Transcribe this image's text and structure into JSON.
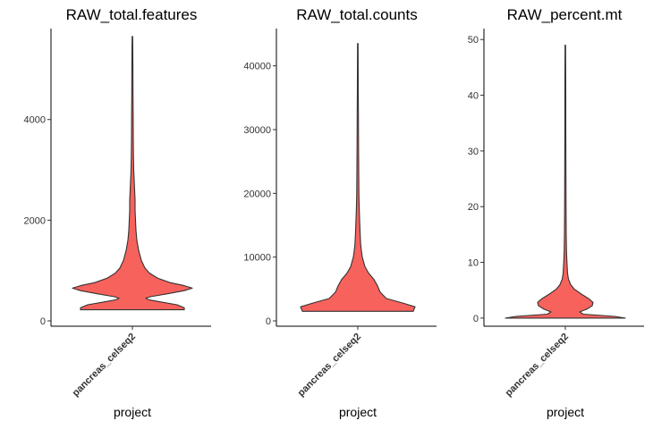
{
  "chart_data": [
    {
      "type": "violin",
      "title": "RAW_total.features",
      "xlabel": "project",
      "ylabel": "",
      "categories": [
        "pancreas_celseq2"
      ],
      "fill_color": "#F8625D",
      "ylim": [
        0,
        5700
      ],
      "yticks": [
        0,
        2000,
        4000
      ],
      "ytick_labels": [
        "0",
        "2000",
        "4000"
      ],
      "density": [
        [
          220,
          58
        ],
        [
          260,
          58
        ],
        [
          320,
          50
        ],
        [
          380,
          30
        ],
        [
          420,
          18
        ],
        [
          450,
          15
        ],
        [
          480,
          20
        ],
        [
          540,
          40
        ],
        [
          600,
          58
        ],
        [
          650,
          67
        ],
        [
          700,
          58
        ],
        [
          760,
          42
        ],
        [
          850,
          28
        ],
        [
          950,
          19
        ],
        [
          1050,
          14
        ],
        [
          1200,
          10
        ],
        [
          1400,
          7
        ],
        [
          1600,
          5
        ],
        [
          1800,
          4
        ],
        [
          2000,
          3.5
        ],
        [
          2200,
          3
        ],
        [
          2400,
          3
        ],
        [
          2600,
          2.5
        ],
        [
          2800,
          2
        ],
        [
          3000,
          1.5
        ],
        [
          3300,
          1.2
        ],
        [
          3600,
          1
        ],
        [
          4000,
          0.9
        ],
        [
          4500,
          0.7
        ],
        [
          5000,
          0.6
        ],
        [
          5500,
          0.4
        ],
        [
          5650,
          0.3
        ]
      ]
    },
    {
      "type": "violin",
      "title": "RAW_total.counts",
      "xlabel": "project",
      "ylabel": "",
      "categories": [
        "pancreas_celseq2"
      ],
      "fill_color": "#F8625D",
      "ylim": [
        0,
        45000
      ],
      "yticks": [
        0,
        10000,
        20000,
        30000,
        40000
      ],
      "ytick_labels": [
        "0",
        "10000",
        "20000",
        "30000",
        "40000"
      ],
      "density": [
        [
          1500,
          62
        ],
        [
          2200,
          64
        ],
        [
          2800,
          50
        ],
        [
          3500,
          32
        ],
        [
          4500,
          25
        ],
        [
          5500,
          22
        ],
        [
          6500,
          18
        ],
        [
          7500,
          12
        ],
        [
          8500,
          8
        ],
        [
          10000,
          5
        ],
        [
          11000,
          4
        ],
        [
          12000,
          3.2
        ],
        [
          14000,
          2.5
        ],
        [
          16000,
          2
        ],
        [
          18000,
          1.5
        ],
        [
          20000,
          1.2
        ],
        [
          24000,
          1
        ],
        [
          28000,
          0.8
        ],
        [
          32000,
          0.7
        ],
        [
          36000,
          0.5
        ],
        [
          40000,
          0.4
        ],
        [
          43500,
          0.3
        ]
      ]
    },
    {
      "type": "violin",
      "title": "RAW_percent.mt",
      "xlabel": "project",
      "ylabel": "",
      "categories": [
        "pancreas_celseq2"
      ],
      "fill_color": "#F8625D",
      "ylim": [
        -0.5,
        51
      ],
      "yticks": [
        0,
        10,
        20,
        30,
        40,
        50
      ],
      "ytick_labels": [
        "0",
        "10",
        "20",
        "30",
        "40",
        "50"
      ],
      "density": [
        [
          0,
          67
        ],
        [
          0.3,
          55
        ],
        [
          0.7,
          20
        ],
        [
          1.1,
          16
        ],
        [
          1.6,
          24
        ],
        [
          2.2,
          30
        ],
        [
          2.8,
          31
        ],
        [
          3.5,
          26
        ],
        [
          4.3,
          18
        ],
        [
          5.2,
          10
        ],
        [
          6,
          6
        ],
        [
          7,
          3.5
        ],
        [
          8,
          2.5
        ],
        [
          10,
          1.8
        ],
        [
          12,
          1.3
        ],
        [
          15,
          1
        ],
        [
          20,
          0.8
        ],
        [
          25,
          0.7
        ],
        [
          30,
          0.6
        ],
        [
          35,
          0.5
        ],
        [
          40,
          0.45
        ],
        [
          45,
          0.4
        ],
        [
          49,
          0.3
        ]
      ]
    }
  ]
}
